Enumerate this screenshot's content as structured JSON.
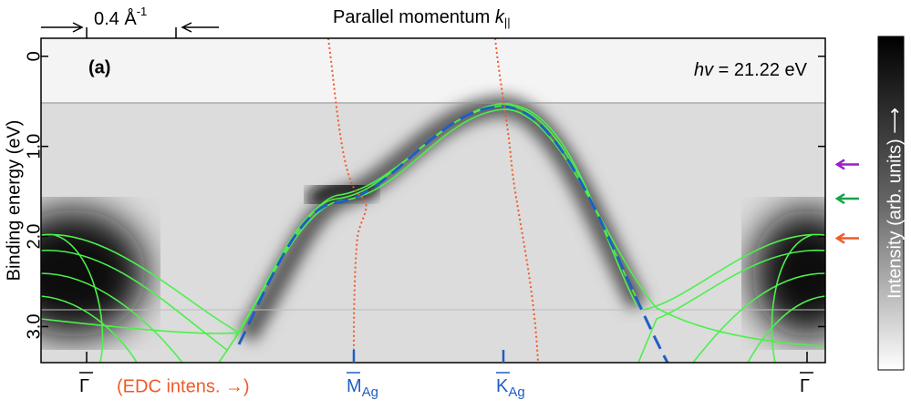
{
  "chart_data": {
    "type": "heatmap",
    "x_label": {
      "text": "Parallel momentum ",
      "symbol": "k",
      "subscript": "||"
    },
    "y_label": "Binding energy (eV)",
    "panel_label": "(a)",
    "annotation": {
      "symbol": "hv",
      "text": " = 21.22 eV"
    },
    "scale_bar": {
      "text": "0.4 Å",
      "superscript": "-1"
    },
    "edc_label": "(EDC intens. →)",
    "points": [
      {
        "label": "Γ",
        "sub": null
      },
      {
        "label": "M",
        "sub": "Ag"
      },
      {
        "label": "K",
        "sub": "Ag"
      },
      {
        "label": "Γ",
        "sub": null
      }
    ],
    "colorbar_label": "Intensity (arb. units) ⟶",
    "ylim": [
      -0.2,
      3.4
    ],
    "yticks": [
      0,
      {
        "value": 1,
        "label": "1.0"
      },
      {
        "value": 2,
        "label": "2.0"
      },
      {
        "value": 3,
        "label": "3.0"
      }
    ],
    "markers": {
      "values": [
        1.2,
        1.58,
        2.02
      ],
      "colors": [
        "#9b1fc9",
        "#16a34a",
        "#f05a28"
      ]
    }
  }
}
